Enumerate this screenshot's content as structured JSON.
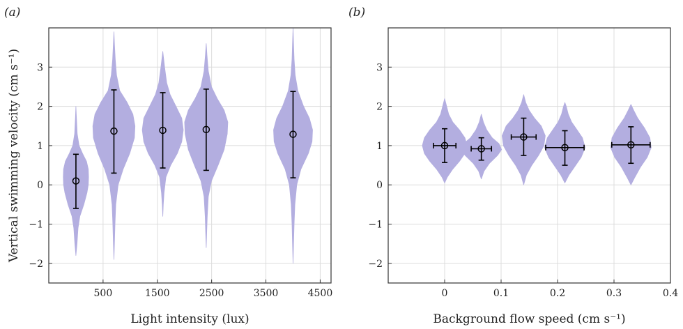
{
  "chart_data": [
    {
      "type": "violin",
      "panel_label": "(a)",
      "xlabel": "Light intensity (lux)",
      "ylabel": "Vertical swimming velocity (cm s⁻¹)",
      "xlim": [
        -500,
        4700
      ],
      "ylim": [
        -2.5,
        4.0
      ],
      "xticks": [
        500,
        1500,
        2500,
        3500,
        4500
      ],
      "xtick_labels": [
        "500",
        "1500",
        "2500",
        "3500",
        "4500"
      ],
      "yticks": [
        -2,
        -1,
        0,
        1,
        2,
        3
      ],
      "ytick_labels": [
        "−2",
        "−1",
        "0",
        "1",
        "2",
        "3"
      ],
      "grid": true,
      "violin_color": "#b3aee0",
      "series": [
        {
          "x": 0,
          "mean": 0.1,
          "lower": -0.6,
          "upper": 0.78,
          "xerr": 0,
          "profile": [
            [
              -1.8,
              0
            ],
            [
              -1.5,
              0.04
            ],
            [
              -1.1,
              0.08
            ],
            [
              -0.8,
              0.15
            ],
            [
              -0.5,
              0.3
            ],
            [
              -0.2,
              0.42
            ],
            [
              0.0,
              0.47
            ],
            [
              0.2,
              0.48
            ],
            [
              0.4,
              0.47
            ],
            [
              0.6,
              0.4
            ],
            [
              0.8,
              0.25
            ],
            [
              1.0,
              0.12
            ],
            [
              1.3,
              0.05
            ],
            [
              1.7,
              0.02
            ],
            [
              2.0,
              0
            ]
          ]
        },
        {
          "x": 700,
          "mean": 1.37,
          "lower": 0.3,
          "upper": 2.42,
          "xerr": 0,
          "profile": [
            [
              -1.9,
              0
            ],
            [
              -1.5,
              0.02
            ],
            [
              -1.0,
              0.04
            ],
            [
              -0.5,
              0.07
            ],
            [
              0.0,
              0.16
            ],
            [
              0.4,
              0.35
            ],
            [
              0.8,
              0.6
            ],
            [
              1.2,
              0.78
            ],
            [
              1.5,
              0.8
            ],
            [
              1.8,
              0.72
            ],
            [
              2.1,
              0.5
            ],
            [
              2.4,
              0.22
            ],
            [
              2.8,
              0.1
            ],
            [
              3.2,
              0.05
            ],
            [
              3.6,
              0.02
            ],
            [
              3.9,
              0
            ]
          ]
        },
        {
          "x": 1600,
          "mean": 1.39,
          "lower": 0.43,
          "upper": 2.35,
          "xerr": 0,
          "profile": [
            [
              -0.8,
              0
            ],
            [
              -0.5,
              0.02
            ],
            [
              -0.2,
              0.05
            ],
            [
              0.2,
              0.12
            ],
            [
              0.5,
              0.3
            ],
            [
              0.8,
              0.55
            ],
            [
              1.1,
              0.72
            ],
            [
              1.4,
              0.78
            ],
            [
              1.7,
              0.72
            ],
            [
              2.0,
              0.5
            ],
            [
              2.3,
              0.28
            ],
            [
              2.6,
              0.15
            ],
            [
              3.0,
              0.07
            ],
            [
              3.4,
              0
            ]
          ]
        },
        {
          "x": 2400,
          "mean": 1.41,
          "lower": 0.37,
          "upper": 2.44,
          "xerr": 0,
          "profile": [
            [
              -1.6,
              0
            ],
            [
              -1.2,
              0.02
            ],
            [
              -0.8,
              0.04
            ],
            [
              -0.3,
              0.08
            ],
            [
              0.1,
              0.2
            ],
            [
              0.5,
              0.45
            ],
            [
              0.9,
              0.68
            ],
            [
              1.3,
              0.8
            ],
            [
              1.6,
              0.82
            ],
            [
              1.9,
              0.68
            ],
            [
              2.2,
              0.42
            ],
            [
              2.5,
              0.2
            ],
            [
              2.9,
              0.08
            ],
            [
              3.3,
              0.03
            ],
            [
              3.6,
              0
            ]
          ]
        },
        {
          "x": 4000,
          "mean": 1.29,
          "lower": 0.18,
          "upper": 2.38,
          "xerr": 0,
          "profile": [
            [
              -2.0,
              0
            ],
            [
              -1.5,
              0.02
            ],
            [
              -1.0,
              0.04
            ],
            [
              -0.5,
              0.07
            ],
            [
              0.0,
              0.14
            ],
            [
              0.4,
              0.3
            ],
            [
              0.8,
              0.58
            ],
            [
              1.1,
              0.72
            ],
            [
              1.4,
              0.74
            ],
            [
              1.7,
              0.62
            ],
            [
              2.0,
              0.4
            ],
            [
              2.4,
              0.18
            ],
            [
              2.8,
              0.08
            ],
            [
              3.2,
              0.04
            ],
            [
              3.6,
              0.02
            ],
            [
              4.0,
              0
            ]
          ]
        }
      ]
    },
    {
      "type": "violin",
      "panel_label": "(b)",
      "xlabel": "Background flow speed (cm s⁻¹)",
      "ylabel": "",
      "xlim": [
        -0.1,
        0.4
      ],
      "ylim": [
        -2.5,
        4.0
      ],
      "xticks": [
        0,
        0.1,
        0.2,
        0.3,
        0.4
      ],
      "xtick_labels": [
        "0",
        "0.1",
        "0.2",
        "0.3",
        "0.4"
      ],
      "yticks": [
        -2,
        -1,
        0,
        1,
        2,
        3
      ],
      "ytick_labels": [
        "−2",
        "−1",
        "0",
        "1",
        "2",
        "3"
      ],
      "grid": true,
      "violin_color": "#b3aee0",
      "series": [
        {
          "x": 0.0,
          "mean": 1.0,
          "lower": 0.57,
          "upper": 1.43,
          "xerr": 0.02,
          "profile": [
            [
              0.05,
              0
            ],
            [
              0.2,
              0.004
            ],
            [
              0.4,
              0.012
            ],
            [
              0.6,
              0.022
            ],
            [
              0.8,
              0.03
            ],
            [
              1.0,
              0.033
            ],
            [
              1.2,
              0.03
            ],
            [
              1.4,
              0.022
            ],
            [
              1.6,
              0.012
            ],
            [
              1.8,
              0.006
            ],
            [
              2.0,
              0.003
            ],
            [
              2.2,
              0
            ]
          ]
        },
        {
          "x": 0.065,
          "mean": 0.92,
          "lower": 0.63,
          "upper": 1.2,
          "xerr": 0.018,
          "profile": [
            [
              0.15,
              0
            ],
            [
              0.35,
              0.004
            ],
            [
              0.55,
              0.012
            ],
            [
              0.75,
              0.024
            ],
            [
              0.9,
              0.03
            ],
            [
              1.05,
              0.026
            ],
            [
              1.2,
              0.016
            ],
            [
              1.4,
              0.008
            ],
            [
              1.6,
              0.003
            ],
            [
              1.8,
              0
            ]
          ]
        },
        {
          "x": 0.14,
          "mean": 1.22,
          "lower": 0.75,
          "upper": 1.7,
          "xerr": 0.022,
          "profile": [
            [
              0.0,
              0
            ],
            [
              0.25,
              0.004
            ],
            [
              0.5,
              0.012
            ],
            [
              0.75,
              0.022
            ],
            [
              1.0,
              0.03
            ],
            [
              1.25,
              0.032
            ],
            [
              1.5,
              0.026
            ],
            [
              1.7,
              0.016
            ],
            [
              1.9,
              0.008
            ],
            [
              2.1,
              0.003
            ],
            [
              2.3,
              0
            ]
          ]
        },
        {
          "x": 0.213,
          "mean": 0.95,
          "lower": 0.5,
          "upper": 1.38,
          "xerr": 0.034,
          "profile": [
            [
              0.05,
              0
            ],
            [
              0.25,
              0.006
            ],
            [
              0.45,
              0.014
            ],
            [
              0.7,
              0.024
            ],
            [
              0.95,
              0.03
            ],
            [
              1.2,
              0.026
            ],
            [
              1.4,
              0.018
            ],
            [
              1.6,
              0.01
            ],
            [
              1.8,
              0.005
            ],
            [
              2.0,
              0.002
            ],
            [
              2.1,
              0
            ]
          ]
        },
        {
          "x": 0.33,
          "mean": 1.02,
          "lower": 0.55,
          "upper": 1.48,
          "xerr": 0.034,
          "profile": [
            [
              0.0,
              0
            ],
            [
              0.2,
              0.006
            ],
            [
              0.45,
              0.014
            ],
            [
              0.7,
              0.024
            ],
            [
              0.95,
              0.03
            ],
            [
              1.2,
              0.028
            ],
            [
              1.45,
              0.02
            ],
            [
              1.7,
              0.01
            ],
            [
              1.9,
              0.004
            ],
            [
              2.05,
              0
            ]
          ]
        }
      ]
    }
  ]
}
